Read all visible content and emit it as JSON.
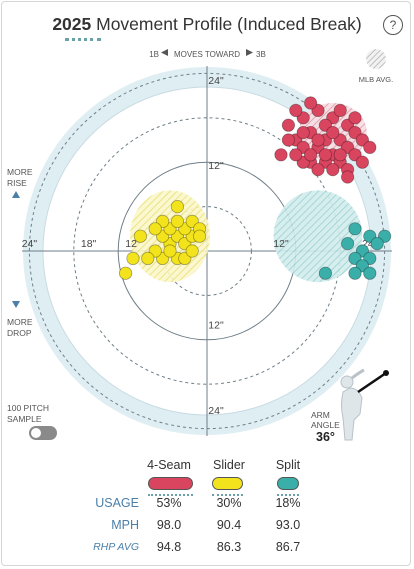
{
  "header": {
    "year": "2025",
    "title": "Movement Profile (Induced Break)",
    "help": "?"
  },
  "direction": {
    "left": "1B",
    "middle": "MOVES TOWARD",
    "right": "3B"
  },
  "legend_mlb_avg": "MLB AVG.",
  "side_labels": {
    "more_rise_1": "MORE",
    "more_rise_2": "RISE",
    "more_drop_1": "MORE",
    "more_drop_2": "DROP",
    "sample_1": "100 PITCH",
    "sample_2": "SAMPLE"
  },
  "arm_angle": {
    "label_1": "ARM",
    "label_2": "ANGLE",
    "value": "36°",
    "degrees": 36
  },
  "chart_data": {
    "type": "scatter",
    "title": "Movement Profile (Induced Break)",
    "xlim": [
      -30,
      30
    ],
    "ylim": [
      -30,
      30
    ],
    "rings": [
      6,
      12,
      18,
      24
    ],
    "x_tick_labels": [
      "24\"",
      "18\"",
      "12\"",
      "12\"",
      "24\""
    ],
    "y_tick_labels": [
      "24\"",
      "12\"",
      "12\"",
      "24\""
    ],
    "series": [
      {
        "name": "4-Seam",
        "color": "#d9455f",
        "mlb_avg": {
          "x": 17,
          "y": 16,
          "rx": 4.6,
          "ry": 4.0
        },
        "points": [
          [
            11,
            17
          ],
          [
            13,
            18
          ],
          [
            15,
            19
          ],
          [
            17,
            18
          ],
          [
            19,
            17
          ],
          [
            14,
            16
          ],
          [
            16,
            15
          ],
          [
            18,
            15
          ],
          [
            20,
            16
          ],
          [
            12,
            15
          ],
          [
            13,
            14
          ],
          [
            15,
            14
          ],
          [
            17,
            13
          ],
          [
            19,
            14
          ],
          [
            21,
            15
          ],
          [
            14,
            12
          ],
          [
            16,
            12
          ],
          [
            18,
            12
          ],
          [
            20,
            13
          ],
          [
            22,
            14
          ],
          [
            10,
            13
          ],
          [
            11,
            15
          ],
          [
            13,
            12
          ],
          [
            15,
            11
          ],
          [
            17,
            11
          ],
          [
            19,
            11
          ],
          [
            21,
            12
          ],
          [
            12,
            19
          ],
          [
            16,
            17
          ],
          [
            14,
            20
          ],
          [
            18,
            19
          ],
          [
            20,
            18
          ],
          [
            12,
            13
          ],
          [
            16,
            13
          ],
          [
            18,
            13
          ],
          [
            19,
            10
          ],
          [
            14,
            13
          ],
          [
            15,
            15
          ],
          [
            17,
            16
          ],
          [
            13,
            16
          ]
        ]
      },
      {
        "name": "Slider",
        "color": "#f2e31c",
        "mlb_avg": {
          "x": -5,
          "y": 2,
          "rx": 5.4,
          "ry": 6.2
        },
        "points": [
          [
            -6,
            -1
          ],
          [
            -5,
            1
          ],
          [
            -4,
            2
          ],
          [
            -3,
            1
          ],
          [
            -2,
            2
          ],
          [
            -6,
            2
          ],
          [
            -5,
            3
          ],
          [
            -3,
            3
          ],
          [
            -2,
            4
          ],
          [
            -1,
            3
          ],
          [
            -7,
            0
          ],
          [
            -4,
            -1
          ],
          [
            -8,
            -1
          ],
          [
            -6,
            4
          ],
          [
            -4,
            4
          ],
          [
            -3,
            -1
          ],
          [
            -10,
            -1
          ],
          [
            -1,
            2
          ],
          [
            -5,
            0
          ],
          [
            -9,
            2
          ],
          [
            -11,
            -3
          ],
          [
            -7,
            3
          ],
          [
            -2,
            0
          ],
          [
            -4,
            6
          ]
        ]
      },
      {
        "name": "Split",
        "color": "#3aaea9",
        "mlb_avg": {
          "x": 15,
          "y": 2,
          "rx": 6.0,
          "ry": 6.2
        },
        "points": [
          [
            20,
            3
          ],
          [
            22,
            2
          ],
          [
            24,
            2
          ],
          [
            23,
            1
          ],
          [
            21,
            0
          ],
          [
            20,
            -1
          ],
          [
            22,
            -1
          ],
          [
            19,
            1
          ],
          [
            21,
            -2
          ],
          [
            20,
            -3
          ],
          [
            22,
            -3
          ],
          [
            16,
            -3
          ]
        ]
      }
    ]
  },
  "pitch_table": {
    "columns": [
      "4-Seam",
      "Slider",
      "Split"
    ],
    "colors": [
      "#d9455f",
      "#f2e31c",
      "#3aaea9"
    ],
    "rows": [
      {
        "label": "USAGE",
        "values": [
          "53%",
          "30%",
          "18%"
        ]
      },
      {
        "label": "MPH",
        "values": [
          "98.0",
          "90.4",
          "93.0"
        ]
      },
      {
        "label": "RHP AVG",
        "values": [
          "94.8",
          "86.3",
          "86.7"
        ]
      }
    ]
  }
}
